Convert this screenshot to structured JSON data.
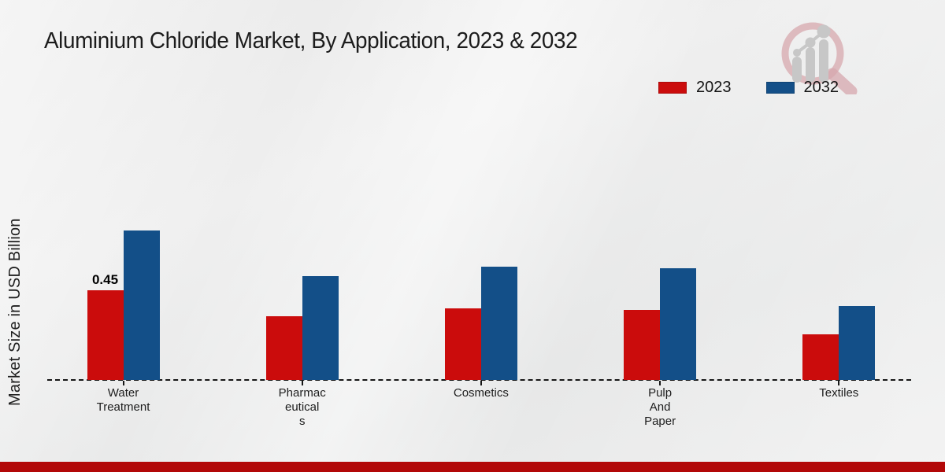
{
  "header": {
    "title": "Aluminium Chloride Market, By Application, 2023 & 2032"
  },
  "colors": {
    "series_2023_red": "#cb0c0c",
    "series_2032_blue": "#134f88",
    "footer_ribbon_red": "#b20808",
    "axis_line": "#161616",
    "background_gray": "#ececec"
  },
  "logo": {
    "name": "magnifier-bar-chart-watermark"
  },
  "chart_data": {
    "type": "bar",
    "title": "Aluminium Chloride Market, By Application, 2023 & 2032",
    "ylabel": "Market Size in USD Billion",
    "xlabel": "",
    "categories": [
      "Water Treatment",
      "Pharmaceuticals",
      "Cosmetics",
      "Pulp And Paper",
      "Textiles"
    ],
    "category_lines": [
      [
        "Water",
        "Treatment"
      ],
      [
        "Pharmac",
        "eutical",
        "s"
      ],
      [
        "Cosmetics"
      ],
      [
        "Pulp",
        "And",
        "Paper"
      ],
      [
        "Textiles"
      ]
    ],
    "series": [
      {
        "name": "2023",
        "color": "#cb0c0c",
        "values": [
          0.45,
          0.32,
          0.36,
          0.35,
          0.23
        ]
      },
      {
        "name": "2032",
        "color": "#134f88",
        "values": [
          0.75,
          0.52,
          0.57,
          0.56,
          0.37
        ]
      }
    ],
    "annotations": [
      {
        "category_index": 0,
        "series": "2023",
        "text": "0.45"
      }
    ],
    "ylim": [
      0,
      0.8
    ],
    "grid": false,
    "baseline_style": "dashed",
    "legend_position": "top-right"
  }
}
